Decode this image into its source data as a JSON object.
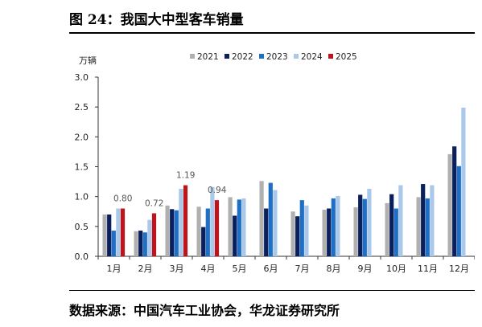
{
  "header": {
    "title": "图 24：我国大中型客车销量"
  },
  "footer": {
    "source": "数据来源：中国汽车工业协会，华龙证券研究所"
  },
  "chart_data": {
    "type": "bar",
    "unit": "万辆",
    "categories": [
      "1月",
      "2月",
      "3月",
      "4月",
      "5月",
      "6月",
      "7月",
      "8月",
      "9月",
      "10月",
      "11月",
      "12月"
    ],
    "ylim": [
      0,
      3.0
    ],
    "yticks": [
      "0.0",
      "0.5",
      "1.0",
      "1.5",
      "2.0",
      "2.5",
      "3.0"
    ],
    "legend_position": "top",
    "grid": false,
    "series": [
      {
        "name": "2021",
        "color": "#b0b0b0",
        "values": [
          0.7,
          0.42,
          0.85,
          0.83,
          0.99,
          1.26,
          0.75,
          0.78,
          0.82,
          0.89,
          0.99,
          1.71
        ]
      },
      {
        "name": "2022",
        "color": "#0b1f5c",
        "values": [
          0.7,
          0.43,
          0.79,
          0.49,
          0.68,
          0.8,
          0.67,
          0.8,
          1.03,
          1.04,
          1.21,
          1.84
        ]
      },
      {
        "name": "2023",
        "color": "#1f6fc5",
        "values": [
          0.43,
          0.4,
          0.77,
          0.8,
          0.95,
          1.23,
          0.94,
          0.97,
          0.96,
          0.8,
          0.97,
          1.51
        ]
      },
      {
        "name": "2024",
        "color": "#a9c8ea",
        "values": [
          0.8,
          0.61,
          1.13,
          1.16,
          0.97,
          1.11,
          0.85,
          1.01,
          1.13,
          1.19,
          1.19,
          2.49
        ]
      },
      {
        "name": "2025",
        "color": "#c0141c",
        "values": [
          0.8,
          0.72,
          1.19,
          0.94,
          null,
          null,
          null,
          null,
          null,
          null,
          null,
          null
        ]
      }
    ],
    "data_labels": [
      {
        "category_index": 0,
        "text": "0.80"
      },
      {
        "category_index": 1,
        "text": "0.72"
      },
      {
        "category_index": 2,
        "text": "1.19"
      },
      {
        "category_index": 3,
        "text": "0.94"
      }
    ]
  }
}
